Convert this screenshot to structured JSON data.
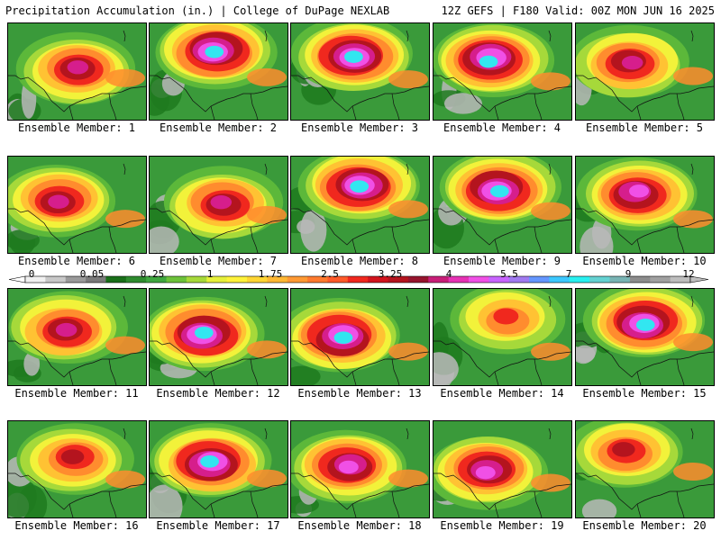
{
  "header": {
    "title_left": "Precipitation Accumulation (in.) | College of DuPage NEXLAB",
    "title_right": "12Z GEFS | F180 Valid: 00Z MON JUN 16 2025"
  },
  "members": [
    {
      "label": "Ensemble Member: 1",
      "max_level": 10
    },
    {
      "label": "Ensemble Member: 2",
      "max_level": 12
    },
    {
      "label": "Ensemble Member: 3",
      "max_level": 12
    },
    {
      "label": "Ensemble Member: 4",
      "max_level": 12
    },
    {
      "label": "Ensemble Member: 5",
      "max_level": 10
    },
    {
      "label": "Ensemble Member: 6",
      "max_level": 10
    },
    {
      "label": "Ensemble Member: 7",
      "max_level": 10
    },
    {
      "label": "Ensemble Member: 8",
      "max_level": 12
    },
    {
      "label": "Ensemble Member: 9",
      "max_level": 12
    },
    {
      "label": "Ensemble Member: 10",
      "max_level": 11
    },
    {
      "label": "Ensemble Member: 11",
      "max_level": 10
    },
    {
      "label": "Ensemble Member: 12",
      "max_level": 12
    },
    {
      "label": "Ensemble Member: 13",
      "max_level": 12
    },
    {
      "label": "Ensemble Member: 14",
      "max_level": 8
    },
    {
      "label": "Ensemble Member: 15",
      "max_level": 12
    },
    {
      "label": "Ensemble Member: 16",
      "max_level": 9
    },
    {
      "label": "Ensemble Member: 17",
      "max_level": 12
    },
    {
      "label": "Ensemble Member: 18",
      "max_level": 11
    },
    {
      "label": "Ensemble Member: 19",
      "max_level": 11
    },
    {
      "label": "Ensemble Member: 20",
      "max_level": 9
    }
  ],
  "colorbar": {
    "tick_labels": [
      "0",
      "0.05",
      "0.25",
      "1",
      "1.75",
      "2.5",
      "3.25",
      "4",
      "5.5",
      "7",
      "9",
      "12"
    ],
    "colors": [
      "#f0f0f0",
      "#c8c8c8",
      "#9a9a9a",
      "#7a7a7a",
      "#196f19",
      "#2e8b2e",
      "#3fa63f",
      "#6cc23a",
      "#a6d93a",
      "#e6f03a",
      "#fff23a",
      "#ffd633",
      "#ffb833",
      "#ff9933",
      "#ff7a2e",
      "#ff5a2a",
      "#f0281e",
      "#d2141e",
      "#b4141e",
      "#96142d",
      "#c81e78",
      "#e632b4",
      "#f050e6",
      "#c864ff",
      "#a07af0",
      "#6496ff",
      "#3cc8ff",
      "#28f0f0",
      "#64d2d2",
      "#78b4b4",
      "#8c8c8c",
      "#a0a0a0",
      "#bebebe"
    ]
  }
}
